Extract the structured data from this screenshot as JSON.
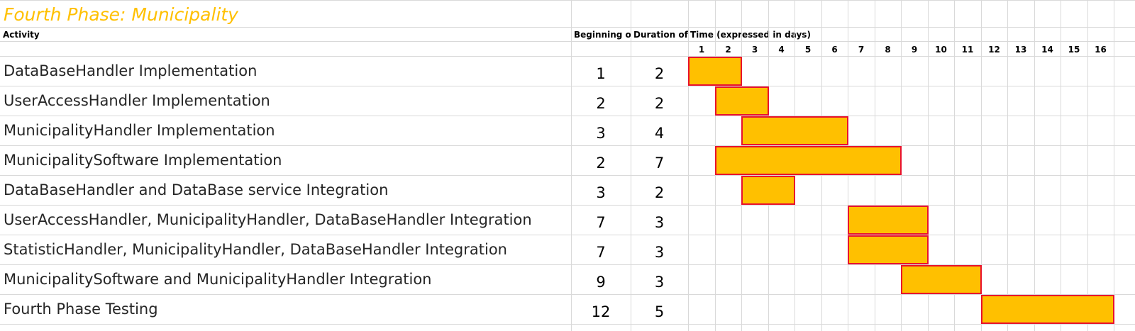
{
  "title": "Fourth Phase: Municipality",
  "headers": {
    "activity": "Activity",
    "beginning": "Beginning of",
    "duration": "Duration of t",
    "time": "Time (expressed in days)"
  },
  "days": [
    "1",
    "2",
    "3",
    "4",
    "5",
    "6",
    "7",
    "8",
    "9",
    "10",
    "11",
    "12",
    "13",
    "14",
    "15",
    "16"
  ],
  "colors": {
    "title": "#ffc000",
    "bar_fill": "#ffc000",
    "bar_border": "#e8112d",
    "grid": "#d9d9d9"
  },
  "chart_data": {
    "type": "bar",
    "subtype": "gantt",
    "title": "Fourth Phase: Municipality",
    "xlabel": "Time (expressed in days)",
    "xlim": [
      1,
      16
    ],
    "grid": true,
    "tasks": [
      {
        "activity": "DataBaseHandler Implementation",
        "start": 1,
        "duration": 2
      },
      {
        "activity": "UserAccessHandler Implementation",
        "start": 2,
        "duration": 2
      },
      {
        "activity": "MunicipalityHandler Implementation",
        "start": 3,
        "duration": 4
      },
      {
        "activity": "MunicipalitySoftware Implementation",
        "start": 2,
        "duration": 7
      },
      {
        "activity": "DataBaseHandler and DataBase service Integration",
        "start": 3,
        "duration": 2
      },
      {
        "activity": "UserAccessHandler, MunicipalityHandler, DataBaseHandler Integration",
        "start": 7,
        "duration": 3
      },
      {
        "activity": "StatisticHandler, MunicipalityHandler, DataBaseHandler Integration",
        "start": 7,
        "duration": 3
      },
      {
        "activity": "MunicipalitySoftware and MunicipalityHandler Integration",
        "start": 9,
        "duration": 3
      },
      {
        "activity": "Fourth Phase Testing",
        "start": 12,
        "duration": 5
      }
    ]
  }
}
